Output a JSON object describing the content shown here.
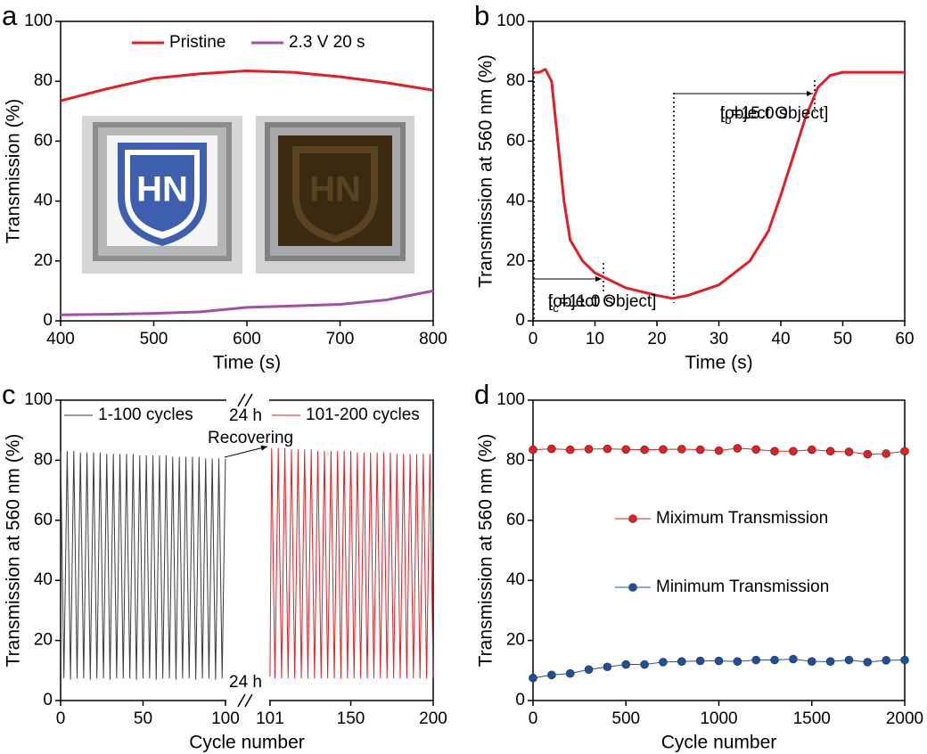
{
  "chart_data": [
    {
      "type": "line",
      "label": "a",
      "xlabel": "Time (s)",
      "ylabel": "Transmission (%)",
      "x": [
        400,
        450,
        500,
        550,
        600,
        650,
        700,
        750,
        800
      ],
      "series": [
        {
          "name": "Pristine",
          "color": "#e31e24",
          "values": [
            73.5,
            77.5,
            81,
            82.5,
            83.5,
            83,
            81.5,
            79.5,
            77
          ]
        },
        {
          "name": "2.3 V 20 s",
          "color": "#a24fa6",
          "values": [
            2,
            2.2,
            2.5,
            3,
            4.5,
            5,
            5.5,
            7,
            10
          ]
        }
      ],
      "xlim": [
        400,
        800
      ],
      "xticks": [
        400,
        500,
        600,
        700,
        800
      ],
      "ylim": [
        0,
        100
      ],
      "yticks": [
        0,
        20,
        40,
        60,
        80,
        100
      ],
      "legend": "top"
    },
    {
      "type": "line",
      "label": "b",
      "xlabel": "Time (s)",
      "ylabel": "Transmission at 560 nm (%)",
      "x": [
        0,
        1,
        2,
        3,
        4,
        5,
        6,
        8,
        10,
        11,
        15,
        20,
        22.5,
        25,
        30,
        35,
        38,
        40,
        42,
        44,
        46,
        48,
        50,
        60
      ],
      "series": [
        {
          "name": null,
          "color": "#e31e24",
          "values": [
            83,
            83,
            84,
            80,
            60,
            40,
            27,
            20,
            16,
            15,
            11,
            8.5,
            7.5,
            8.5,
            12,
            20,
            30,
            42,
            55,
            68,
            78,
            82,
            83,
            83
          ]
        }
      ],
      "xlim": [
        0,
        60
      ],
      "xticks": [
        0,
        10,
        20,
        30,
        40,
        50,
        60
      ],
      "ylim": [
        0,
        100
      ],
      "yticks": [
        0,
        20,
        40,
        60,
        80,
        100
      ],
      "annotations": [
        {
          "text": [
            "t",
            "c",
            "=11.0 s"
          ]
        },
        {
          "text": [
            "t",
            "b",
            "=15.0 s"
          ]
        }
      ]
    },
    {
      "type": "line",
      "label": "c",
      "xlabel": "Cycle number",
      "ylabel": "Transmission at 560 nm (%)",
      "series": [
        {
          "name": "1-100 cycles",
          "color": "#3a3a3a",
          "x": [
            0,
            2,
            4,
            6,
            8,
            10,
            12,
            14,
            16,
            18,
            20,
            22,
            24,
            26,
            28,
            30,
            32,
            34,
            36,
            38,
            40,
            42,
            44,
            46,
            48,
            50,
            52,
            54,
            56,
            58,
            60,
            62,
            64,
            66,
            68,
            70,
            72,
            74,
            76,
            78,
            80,
            82,
            84,
            86,
            88,
            90,
            92,
            94,
            96,
            98,
            100
          ],
          "values": [
            83,
            7.5,
            83,
            7,
            83,
            7.5,
            82.5,
            7.5,
            82.5,
            7,
            82.5,
            7.5,
            82.5,
            7.5,
            82,
            7,
            82,
            7.5,
            82,
            7.5,
            82,
            7.5,
            82,
            7,
            81.5,
            7.5,
            81.5,
            7.5,
            81.5,
            7,
            81.5,
            7.5,
            81.5,
            7.5,
            81,
            7,
            81,
            7.5,
            81,
            7.5,
            81,
            7,
            81,
            7.5,
            80.5,
            7.5,
            80.5,
            7,
            80.5,
            7.5,
            80.5
          ]
        },
        {
          "name": "101-200 cycles",
          "color": "#e31e24",
          "x": [
            101,
            102,
            104,
            106,
            108,
            110,
            112,
            114,
            116,
            118,
            120,
            122,
            124,
            126,
            128,
            130,
            132,
            134,
            136,
            138,
            140,
            142,
            144,
            146,
            148,
            150,
            152,
            154,
            156,
            158,
            160,
            162,
            164,
            166,
            168,
            170,
            172,
            174,
            176,
            178,
            180,
            182,
            184,
            186,
            188,
            190,
            192,
            194,
            196,
            198,
            200
          ],
          "values": [
            8,
            84,
            7.5,
            84,
            7.5,
            84,
            7.5,
            83.5,
            7.5,
            83.5,
            7.5,
            83.5,
            7.5,
            83.5,
            7.5,
            83,
            7.5,
            83,
            7.5,
            83,
            7.5,
            83,
            7.5,
            83,
            7.5,
            83,
            7.5,
            82.5,
            7.5,
            82.5,
            7.5,
            82.5,
            7.5,
            82.5,
            7.5,
            82.5,
            7.5,
            82.5,
            7.5,
            82,
            7.5,
            82,
            7.5,
            82,
            7.5,
            82,
            7.5,
            82,
            7.5,
            82,
            7.5
          ]
        }
      ],
      "xlim": [
        0,
        200
      ],
      "x_break": [
        100,
        101
      ],
      "xticks": [
        0,
        50,
        100,
        101,
        150,
        200
      ],
      "ylim": [
        0,
        100
      ],
      "yticks": [
        0,
        20,
        40,
        60,
        80,
        100
      ],
      "legend": "top",
      "annotations": [
        "24 h",
        "24 h",
        "Recovering"
      ]
    },
    {
      "type": "line",
      "label": "d",
      "xlabel": "Cycle number",
      "ylabel": "Transmission at 560 nm (%)",
      "markers": true,
      "x": [
        0,
        100,
        200,
        300,
        400,
        500,
        600,
        700,
        800,
        900,
        1000,
        1100,
        1200,
        1300,
        1400,
        1500,
        1600,
        1700,
        1800,
        1900,
        2000
      ],
      "series": [
        {
          "name": "Miximum Transmission",
          "color": "#e31e24",
          "values": [
            83.5,
            83.8,
            83.5,
            83.7,
            83.8,
            83.6,
            83.5,
            83.6,
            83.7,
            83.5,
            83.2,
            84,
            83.6,
            83,
            83,
            83.5,
            83,
            82.8,
            82,
            82.2,
            83
          ]
        },
        {
          "name": "Minimum Transmission",
          "color": "#1f4e9c",
          "values": [
            7.5,
            8.5,
            9,
            10.3,
            11.2,
            12,
            12,
            12.8,
            13,
            13.2,
            13.2,
            13,
            13.5,
            13.5,
            13.8,
            13,
            13,
            13.5,
            12.8,
            13.4,
            13.5
          ]
        }
      ],
      "xlim": [
        0,
        2000
      ],
      "xticks": [
        0,
        500,
        1000,
        1500,
        2000
      ],
      "ylim": [
        0,
        100
      ],
      "yticks": [
        0,
        20,
        40,
        60,
        80,
        100
      ],
      "legend": "center"
    }
  ]
}
